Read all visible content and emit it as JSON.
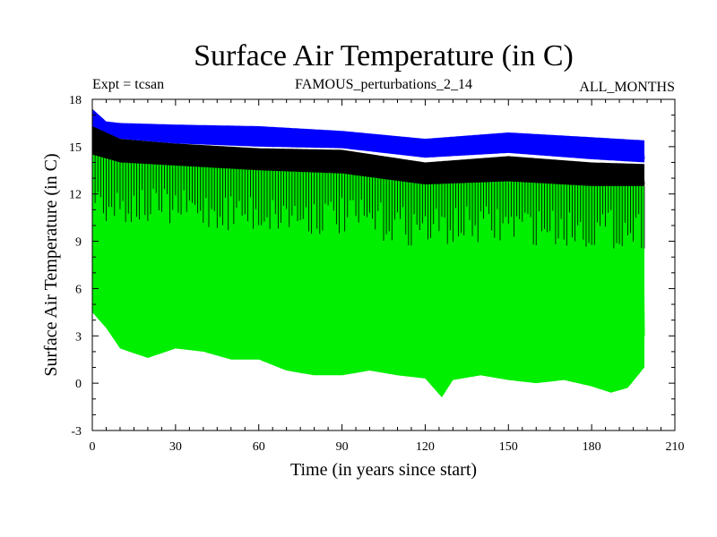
{
  "chart_data": {
    "type": "line",
    "title": "Surface Air Temperature (in C)",
    "subtitle_left": "Expt = tcsan",
    "subtitle_center": "FAMOUS_perturbations_2_14",
    "subtitle_right": "ALL_MONTHS",
    "xlabel": "Time (in years since start)",
    "ylabel": "Surface Air Temperature (in C)",
    "xlim": [
      0,
      210
    ],
    "ylim": [
      -3,
      18
    ],
    "xticks": [
      0,
      30,
      60,
      90,
      120,
      150,
      180,
      210
    ],
    "yticks": [
      -3,
      0,
      3,
      6,
      9,
      12,
      15,
      18
    ],
    "x_tick_labels": [
      "0",
      "30",
      "60",
      "90",
      "120",
      "150",
      "180",
      "210"
    ],
    "y_tick_labels": [
      "-3",
      "0",
      "3",
      "6",
      "9",
      "12",
      "15",
      "18"
    ],
    "data_x_range": [
      0,
      199
    ],
    "series": [
      {
        "name": "green",
        "color": "#00ee00",
        "description": "monthly values, seasonal cycle",
        "min_envelope": [
          [
            0,
            4.5
          ],
          [
            5,
            3.5
          ],
          [
            10,
            2.2
          ],
          [
            20,
            1.6
          ],
          [
            30,
            2.2
          ],
          [
            40,
            2.0
          ],
          [
            50,
            1.5
          ],
          [
            60,
            1.5
          ],
          [
            70,
            0.8
          ],
          [
            80,
            0.5
          ],
          [
            90,
            0.5
          ],
          [
            100,
            0.8
          ],
          [
            110,
            0.5
          ],
          [
            120,
            0.3
          ],
          [
            126,
            -0.9
          ],
          [
            130,
            0.2
          ],
          [
            140,
            0.5
          ],
          [
            150,
            0.2
          ],
          [
            160,
            0.0
          ],
          [
            170,
            0.2
          ],
          [
            180,
            -0.2
          ],
          [
            187,
            -0.6
          ],
          [
            193,
            -0.3
          ],
          [
            199,
            1.0
          ]
        ],
        "max_envelope": [
          [
            0,
            15.3
          ],
          [
            5,
            15.5
          ],
          [
            10,
            15.0
          ],
          [
            20,
            15.2
          ],
          [
            30,
            15.0
          ],
          [
            40,
            15.0
          ],
          [
            50,
            14.8
          ],
          [
            60,
            14.8
          ],
          [
            70,
            14.5
          ],
          [
            80,
            14.5
          ],
          [
            90,
            14.5
          ],
          [
            100,
            14.3
          ],
          [
            110,
            14.0
          ],
          [
            120,
            13.8
          ],
          [
            130,
            13.6
          ],
          [
            140,
            14.0
          ],
          [
            150,
            14.0
          ],
          [
            160,
            13.8
          ],
          [
            170,
            13.6
          ],
          [
            180,
            13.5
          ],
          [
            190,
            13.3
          ],
          [
            199,
            13.0
          ]
        ]
      },
      {
        "name": "black",
        "color": "#000000",
        "description": "monthly values (upper range)",
        "min_envelope": [
          [
            0,
            14.5
          ],
          [
            10,
            14.0
          ],
          [
            30,
            13.8
          ],
          [
            60,
            13.5
          ],
          [
            90,
            13.3
          ],
          [
            120,
            12.6
          ],
          [
            150,
            12.8
          ],
          [
            180,
            12.5
          ],
          [
            199,
            12.5
          ]
        ],
        "max_envelope": [
          [
            0,
            16.5
          ],
          [
            10,
            15.5
          ],
          [
            30,
            15.2
          ],
          [
            60,
            14.9
          ],
          [
            90,
            14.8
          ],
          [
            120,
            14.0
          ],
          [
            150,
            14.4
          ],
          [
            180,
            14.0
          ],
          [
            199,
            13.9
          ]
        ]
      },
      {
        "name": "blue",
        "color": "#0000ff",
        "description": "upper series",
        "min_envelope": [
          [
            0,
            16.3
          ],
          [
            10,
            15.5
          ],
          [
            30,
            15.2
          ],
          [
            60,
            15.0
          ],
          [
            90,
            14.9
          ],
          [
            120,
            14.3
          ],
          [
            150,
            14.6
          ],
          [
            180,
            14.2
          ],
          [
            199,
            14.0
          ]
        ],
        "max_envelope": [
          [
            0,
            17.4
          ],
          [
            5,
            16.6
          ],
          [
            10,
            16.5
          ],
          [
            30,
            16.4
          ],
          [
            60,
            16.3
          ],
          [
            90,
            16.0
          ],
          [
            120,
            15.5
          ],
          [
            150,
            15.9
          ],
          [
            180,
            15.6
          ],
          [
            199,
            15.4
          ]
        ]
      }
    ]
  }
}
